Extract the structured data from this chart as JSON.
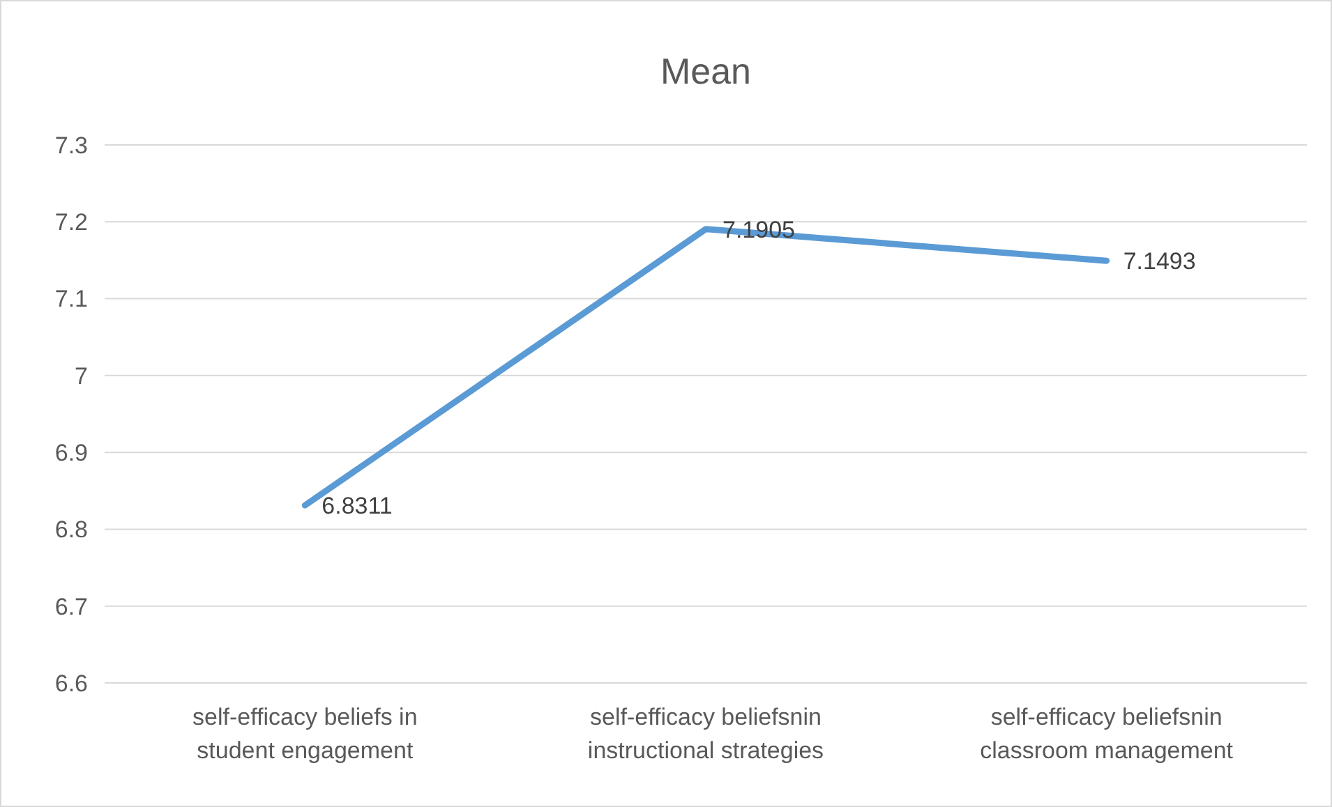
{
  "chart_data": {
    "type": "line",
    "title": "Mean",
    "categories": [
      "self-efficacy beliefs in student engagement",
      "self-efficacy beliefsnin instructional strategies",
      "self-efficacy beliefsnin classroom management"
    ],
    "series": [
      {
        "color": "#5b9bd5",
        "values": [
          6.8311,
          7.1905,
          7.1493
        ]
      }
    ],
    "ylim": [
      6.6,
      7.3
    ],
    "yticks": [
      6.6,
      6.7,
      6.8,
      6.9,
      7,
      7.1,
      7.2,
      7.3
    ],
    "grid": "y",
    "data_labels": true,
    "marker": "none",
    "line_style": "solid"
  }
}
